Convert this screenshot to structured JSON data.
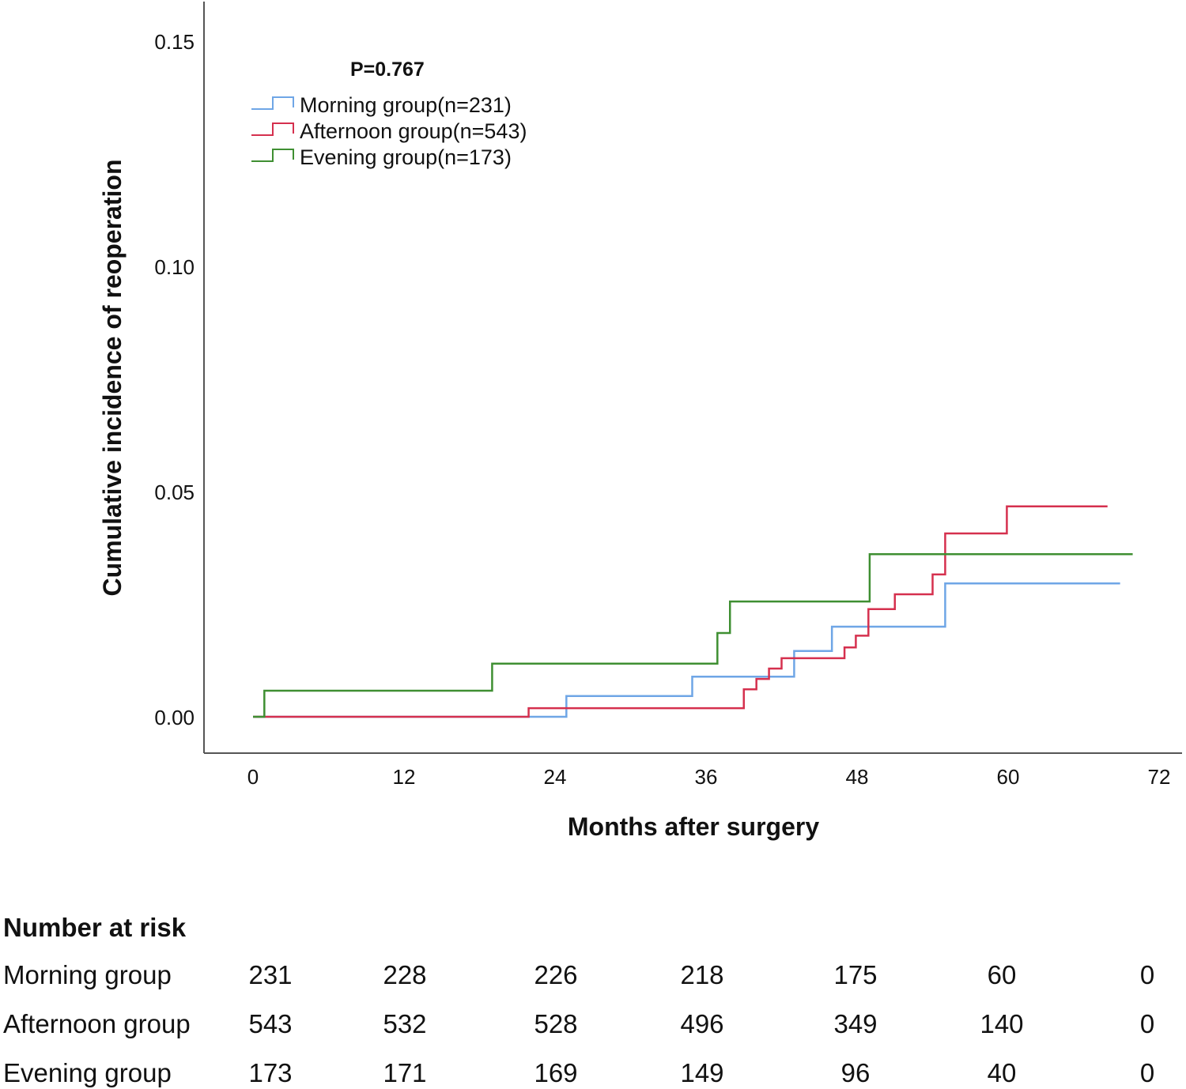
{
  "chart_data": {
    "type": "line",
    "subtype": "step",
    "annotation": "P=0.767",
    "xlabel": "Months after surgery",
    "ylabel": "Cumulative incidence of reoperation",
    "xlim": [
      0,
      72
    ],
    "ylim": [
      0,
      0.15
    ],
    "xticks": [
      0,
      12,
      24,
      36,
      48,
      60,
      72
    ],
    "yticks": [
      "0.00",
      "0.05",
      "0.10",
      "0.15"
    ],
    "legend_position": "top-left",
    "series": [
      {
        "name": "Morning group(n=231)",
        "color": "#6fa6e6",
        "points": [
          [
            0,
            0
          ],
          [
            24.9,
            0.0046
          ],
          [
            34.9,
            0.0089
          ],
          [
            43,
            0.0146
          ],
          [
            46,
            0.02
          ],
          [
            55,
            0.0296
          ],
          [
            68.9,
            0.0296
          ]
        ]
      },
      {
        "name": "Afternoon group(n=543)",
        "color": "#d5304e",
        "points": [
          [
            0,
            0
          ],
          [
            21.9,
            0.0019
          ],
          [
            39,
            0.0061
          ],
          [
            40,
            0.0084
          ],
          [
            41,
            0.0107
          ],
          [
            42,
            0.013
          ],
          [
            47,
            0.0154
          ],
          [
            47.9,
            0.018
          ],
          [
            48.9,
            0.0239
          ],
          [
            51,
            0.0272
          ],
          [
            54,
            0.0316
          ],
          [
            55,
            0.0407
          ],
          [
            59.9,
            0.0467
          ],
          [
            67.9,
            0.0467
          ]
        ]
      },
      {
        "name": "Evening group(n=173)",
        "color": "#3f8f32",
        "points": [
          [
            0,
            0
          ],
          [
            0.9,
            0.0058
          ],
          [
            19,
            0.0118
          ],
          [
            36.9,
            0.0186
          ],
          [
            37.9,
            0.0256
          ],
          [
            49,
            0.0361
          ],
          [
            69.9,
            0.0361
          ]
        ]
      }
    ]
  },
  "risk_table": {
    "title": "Number at risk",
    "rows": [
      {
        "label": "Morning group",
        "values": [
          "231",
          "228",
          "226",
          "218",
          "175",
          "60",
          "0"
        ]
      },
      {
        "label": "Afternoon group",
        "values": [
          "543",
          "532",
          "528",
          "496",
          "349",
          "140",
          "0"
        ]
      },
      {
        "label": "Evening group",
        "values": [
          "173",
          "171",
          "169",
          "149",
          "96",
          "40",
          "0"
        ]
      }
    ]
  }
}
